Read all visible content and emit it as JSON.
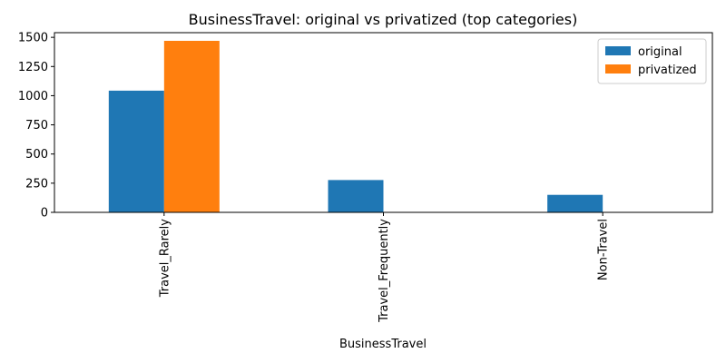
{
  "colors": {
    "original": "#1f77b4",
    "privatized": "#ff7f0e",
    "axis": "#000000",
    "legend_border": "#cccccc"
  },
  "chart_data": {
    "type": "bar",
    "title": "BusinessTravel: original vs privatized (top categories)",
    "xlabel": "BusinessTravel",
    "ylabel": "",
    "categories": [
      "Travel_Rarely",
      "Travel_Frequently",
      "Non-Travel"
    ],
    "series": [
      {
        "name": "original",
        "values": [
          1043,
          277,
          150
        ]
      },
      {
        "name": "privatized",
        "values": [
          1470,
          0,
          0
        ]
      }
    ],
    "ylim": [
      0,
      1540
    ],
    "yticks": [
      0,
      250,
      500,
      750,
      1000,
      1250,
      1500
    ],
    "ytick_labels": [
      "0",
      "250",
      "500",
      "750",
      "1000",
      "1250",
      "1500"
    ],
    "grid": false,
    "legend": "top-right"
  }
}
